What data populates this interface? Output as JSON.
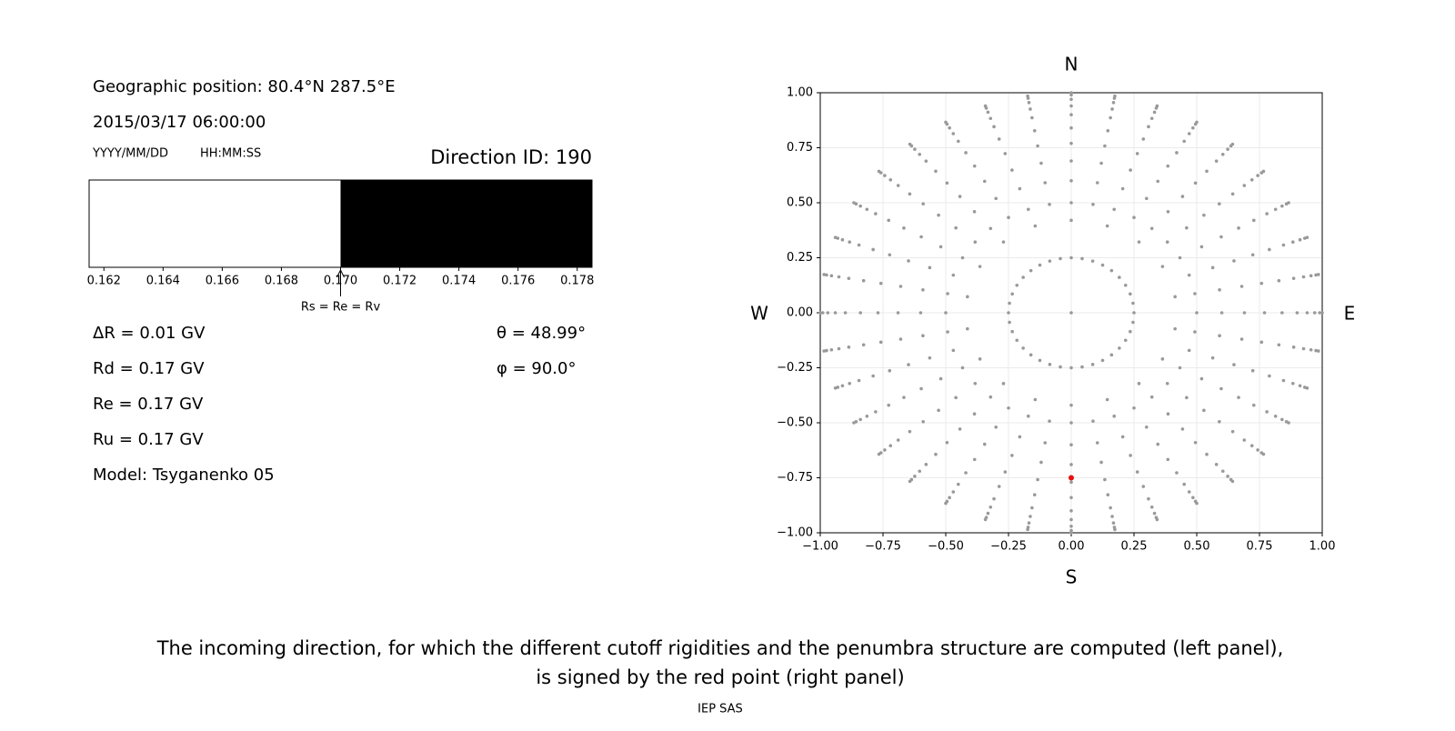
{
  "panel_text": {
    "position": "Geographic position: 80.4°N 287.5°E",
    "datetime": "2015/03/17 06:00:00",
    "date_format": "YYYY/MM/DD",
    "time_format": "HH:MM:SS",
    "delta_r": "ΔR = 0.01 GV",
    "rd": "Rd = 0.17 GV",
    "re": "Re = 0.17 GV",
    "ru": "Ru = 0.17 GV",
    "model": "Model: Tsyganenko 05",
    "theta": "θ = 48.99°",
    "phi": "φ = 90.0°"
  },
  "chart_data": [
    {
      "type": "penumbra",
      "title": "Direction ID: 190",
      "xlim": [
        0.1615,
        0.1785
      ],
      "xticks": [
        0.162,
        0.164,
        0.166,
        0.168,
        0.17,
        0.172,
        0.174,
        0.176,
        0.178
      ],
      "xtick_labels": [
        "0.162",
        "0.164",
        "0.166",
        "0.168",
        "0.170",
        "0.172",
        "0.174",
        "0.176",
        "0.178"
      ],
      "segments": [
        {
          "color": "#ffffff",
          "range": [
            0.1615,
            0.17
          ]
        },
        {
          "color": "#000000",
          "range": [
            0.17,
            0.1785
          ]
        }
      ],
      "annotation": {
        "text": "Rs = Re = Rv",
        "x": 0.17
      }
    },
    {
      "type": "scatter",
      "top_label": "N",
      "bottom_label": "S",
      "left_label": "W",
      "right_label": "E",
      "grid": true,
      "xlim": [
        -1,
        1
      ],
      "ylim": [
        -1,
        1
      ],
      "xticks": [
        {
          "value": -1,
          "label": "−1.00"
        },
        {
          "value": -0.75,
          "label": "−0.75"
        },
        {
          "value": -0.5,
          "label": "−0.50"
        },
        {
          "value": -0.25,
          "label": "−0.25"
        },
        {
          "value": 0,
          "label": "0.00"
        },
        {
          "value": 0.25,
          "label": "0.25"
        },
        {
          "value": 0.5,
          "label": "0.50"
        },
        {
          "value": 0.75,
          "label": "0.75"
        },
        {
          "value": 1,
          "label": "1.00"
        }
      ],
      "yticks": [
        {
          "value": -1,
          "label": "−1.00"
        },
        {
          "value": -0.75,
          "label": "−0.75"
        },
        {
          "value": -0.5,
          "label": "−0.50"
        },
        {
          "value": -0.25,
          "label": "−0.25"
        },
        {
          "value": 0,
          "label": "0.00"
        },
        {
          "value": 0.25,
          "label": "0.25"
        },
        {
          "value": 0.5,
          "label": "0.50"
        },
        {
          "value": 0.75,
          "label": "0.75"
        },
        {
          "value": 1,
          "label": "1.00"
        }
      ],
      "series": [
        {
          "color": "#999999",
          "azimuths": [
            0,
            10,
            20,
            30,
            40,
            50,
            60,
            70,
            80,
            90,
            100,
            110,
            120,
            130,
            140,
            150,
            160,
            170,
            180,
            190,
            200,
            210,
            220,
            230,
            240,
            250,
            260,
            270,
            280,
            290,
            300,
            310,
            320,
            330,
            340,
            350
          ],
          "radii": [
            0.5,
            0.6,
            0.69,
            0.77,
            0.84,
            0.9,
            0.94,
            0.97,
            0.99,
            1.0
          ]
        },
        {
          "color": "#999999",
          "azimuths": [
            0,
            20,
            40,
            60,
            80,
            100,
            120,
            140,
            160,
            180,
            200,
            220,
            240,
            260,
            280,
            300,
            320,
            340
          ],
          "radii": [
            0.42
          ]
        },
        {
          "color": "#999999",
          "azimuths": [
            0,
            10,
            20,
            30,
            40,
            50,
            60,
            70,
            80,
            90,
            100,
            110,
            120,
            130,
            140,
            150,
            160,
            170,
            180,
            190,
            200,
            210,
            220,
            230,
            240,
            250,
            260,
            270,
            280,
            290,
            300,
            310,
            320,
            330,
            340,
            350
          ],
          "radii": [
            0.25
          ]
        },
        {
          "color": "#999999",
          "azimuths": [
            0
          ],
          "radii": [
            0
          ]
        },
        {
          "color": "#e8100f",
          "azimuths": [
            180
          ],
          "radii": [
            0.75
          ]
        }
      ]
    }
  ],
  "caption": [
    "The incoming direction, for which the different cutoff rigidities and the penumbra structure are computed (left panel),",
    "is signed by the red point (right panel)"
  ],
  "footer": "IEP SAS"
}
